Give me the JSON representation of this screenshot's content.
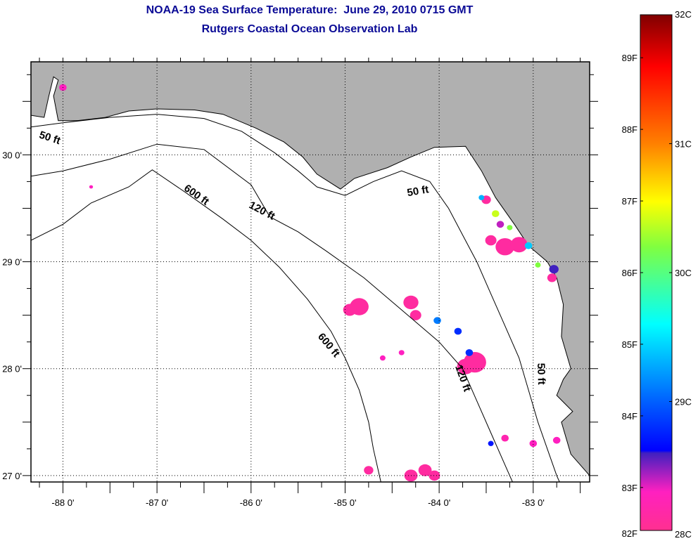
{
  "header": {
    "title": "NOAA-19 Sea Surface Temperature:  June 29, 2010 0715 GMT",
    "subtitle": "Rutgers Coastal Ocean Observation Lab"
  },
  "chart_data": {
    "type": "heatmap",
    "title": "NOAA-19 Sea Surface Temperature:  June 29, 2010 0715 GMT",
    "subtitle": "Rutgers Coastal Ocean Observation Lab",
    "xlabel": "",
    "ylabel": "",
    "xlim": [
      -88.34,
      -82.4
    ],
    "ylim": [
      26.94,
      30.87
    ],
    "grid": true,
    "x_ticks": [
      {
        "value": -88,
        "label": "-88 0'"
      },
      {
        "value": -87,
        "label": "-87 0'"
      },
      {
        "value": -86,
        "label": "-86 0'"
      },
      {
        "value": -85,
        "label": "-85 0'"
      },
      {
        "value": -84,
        "label": "-84 0'"
      },
      {
        "value": -83,
        "label": "-83 0'"
      }
    ],
    "y_ticks": [
      {
        "value": 30,
        "label": "30 0'"
      },
      {
        "value": 29,
        "label": "29 0'"
      },
      {
        "value": 28,
        "label": "28 0'"
      },
      {
        "value": 27,
        "label": "27 0'"
      }
    ],
    "colors": {
      "land": "#b0b0b0",
      "ocean": "#ffffff",
      "title": "#0a0a96",
      "frame": "#000000"
    },
    "colorbar": {
      "min_c": 28,
      "max_c": 32,
      "celsius_labels": [
        {
          "value": 32,
          "label": "32C"
        },
        {
          "value": 31,
          "label": "31C"
        },
        {
          "value": 30,
          "label": "30C"
        },
        {
          "value": 29,
          "label": "29C"
        },
        {
          "value": 28,
          "label": "28C"
        }
      ],
      "fahrenheit_labels": [
        {
          "value": 89,
          "label": "89F"
        },
        {
          "value": 88,
          "label": "88F"
        },
        {
          "value": 87,
          "label": "87F"
        },
        {
          "value": 86,
          "label": "86F"
        },
        {
          "value": 85,
          "label": "85F"
        },
        {
          "value": 84,
          "label": "84F"
        },
        {
          "value": 83,
          "label": "83F"
        },
        {
          "value": 82,
          "label": "82F"
        }
      ],
      "stops": [
        {
          "c": 32.0,
          "color": "#800000"
        },
        {
          "c": 31.6,
          "color": "#ff0000"
        },
        {
          "c": 31.0,
          "color": "#ff8000"
        },
        {
          "c": 30.55,
          "color": "#ffff00"
        },
        {
          "c": 30.2,
          "color": "#80ff40"
        },
        {
          "c": 29.6,
          "color": "#00ffff"
        },
        {
          "c": 29.0,
          "color": "#0060ff"
        },
        {
          "c": 28.62,
          "color": "#0000ff"
        },
        {
          "c": 28.6,
          "color": "#4020c0"
        },
        {
          "c": 28.3,
          "color": "#ff20c0"
        },
        {
          "c": 28.0,
          "color": "#ff3090"
        }
      ]
    },
    "isobaths": [
      {
        "label": "50 ft",
        "label_at": [
          -88.15,
          30.13
        ],
        "label_angle": 18,
        "points": [
          [
            -88.34,
            30.26
          ],
          [
            -88.0,
            30.3
          ],
          [
            -87.5,
            30.35
          ],
          [
            -87.0,
            30.38
          ],
          [
            -86.5,
            30.34
          ],
          [
            -86.1,
            30.22
          ],
          [
            -85.75,
            30.02
          ],
          [
            -85.5,
            29.85
          ],
          [
            -85.3,
            29.7
          ],
          [
            -85.0,
            29.62
          ],
          [
            -84.7,
            29.75
          ],
          [
            -84.4,
            29.85
          ],
          [
            -84.1,
            29.75
          ],
          [
            -83.9,
            29.5
          ],
          [
            -83.75,
            29.25
          ],
          [
            -83.6,
            29.0
          ],
          [
            -83.45,
            28.7
          ],
          [
            -83.3,
            28.4
          ],
          [
            -83.15,
            28.1
          ],
          [
            -83.05,
            27.8
          ],
          [
            -82.95,
            27.5
          ],
          [
            -82.85,
            27.25
          ],
          [
            -82.75,
            27.0
          ],
          [
            -82.72,
            26.94
          ]
        ]
      },
      {
        "label": "120 ft",
        "label_at": [
          -85.9,
          29.45
        ],
        "label_angle": 28,
        "points": [
          [
            -88.34,
            29.8
          ],
          [
            -88.0,
            29.85
          ],
          [
            -87.5,
            29.96
          ],
          [
            -87.0,
            30.1
          ],
          [
            -86.5,
            30.05
          ],
          [
            -86.0,
            29.72
          ],
          [
            -85.8,
            29.42
          ],
          [
            -85.5,
            29.28
          ],
          [
            -85.2,
            29.1
          ],
          [
            -84.8,
            28.85
          ],
          [
            -84.4,
            28.55
          ],
          [
            -84.0,
            28.25
          ],
          [
            -83.75,
            28.0
          ],
          [
            -83.6,
            27.7
          ],
          [
            -83.45,
            27.4
          ],
          [
            -83.3,
            27.1
          ],
          [
            -83.22,
            26.94
          ]
        ]
      },
      {
        "label": "600 ft",
        "label_at": [
          -86.6,
          29.6
        ],
        "label_angle": 35,
        "points": [
          [
            -88.34,
            29.2
          ],
          [
            -88.0,
            29.35
          ],
          [
            -87.7,
            29.55
          ],
          [
            -87.3,
            29.7
          ],
          [
            -87.05,
            29.86
          ],
          [
            -86.7,
            29.65
          ],
          [
            -86.3,
            29.4
          ],
          [
            -86.0,
            29.2
          ],
          [
            -85.7,
            28.95
          ],
          [
            -85.4,
            28.65
          ],
          [
            -85.15,
            28.35
          ],
          [
            -85.0,
            28.1
          ],
          [
            -84.85,
            27.8
          ],
          [
            -84.75,
            27.5
          ],
          [
            -84.7,
            27.25
          ],
          [
            -84.62,
            26.94
          ]
        ]
      },
      {
        "label": "600 ft",
        "label_at": [
          -85.2,
          28.2
        ],
        "label_angle": 50,
        "points": []
      },
      {
        "label": "50 ft",
        "label_at": [
          -84.22,
          29.63
        ],
        "label_angle": -10,
        "points": []
      },
      {
        "label": "120 ft",
        "label_at": [
          -83.78,
          27.9
        ],
        "label_angle": 70,
        "points": []
      },
      {
        "label": "50 ft",
        "label_at": [
          -82.95,
          27.95
        ],
        "label_angle": 88,
        "points": []
      }
    ],
    "land": [
      [
        [
          -88.34,
          30.87
        ],
        [
          -82.4,
          30.87
        ],
        [
          -82.4,
          27.0
        ],
        [
          -82.6,
          27.2
        ],
        [
          -82.7,
          27.5
        ],
        [
          -82.58,
          27.6
        ],
        [
          -82.75,
          27.75
        ],
        [
          -82.68,
          27.9
        ],
        [
          -82.6,
          28.0
        ],
        [
          -82.7,
          28.3
        ],
        [
          -82.68,
          28.6
        ],
        [
          -82.75,
          28.85
        ],
        [
          -82.85,
          29.0
        ],
        [
          -83.05,
          29.15
        ],
        [
          -83.2,
          29.35
        ],
        [
          -83.4,
          29.6
        ],
        [
          -83.55,
          29.85
        ],
        [
          -83.72,
          30.08
        ],
        [
          -84.05,
          30.07
        ],
        [
          -84.3,
          29.98
        ],
        [
          -84.55,
          29.88
        ],
        [
          -84.9,
          29.78
        ],
        [
          -85.05,
          29.68
        ],
        [
          -85.3,
          29.82
        ],
        [
          -85.45,
          29.98
        ],
        [
          -85.65,
          30.12
        ],
        [
          -85.95,
          30.25
        ],
        [
          -86.3,
          30.38
        ],
        [
          -86.6,
          30.42
        ],
        [
          -87.0,
          30.43
        ],
        [
          -87.3,
          30.41
        ],
        [
          -87.55,
          30.35
        ],
        [
          -87.85,
          30.32
        ],
        [
          -88.05,
          30.32
        ],
        [
          -88.1,
          30.55
        ],
        [
          -88.05,
          30.7
        ],
        [
          -88.1,
          30.73
        ],
        [
          -88.15,
          30.55
        ],
        [
          -88.2,
          30.35
        ],
        [
          -88.34,
          30.37
        ]
      ]
    ],
    "sst_patches": [
      {
        "lon": -84.85,
        "lat": 28.58,
        "c": 28.1,
        "r": 0.1
      },
      {
        "lon": -84.95,
        "lat": 28.55,
        "c": 28.1,
        "r": 0.07
      },
      {
        "lon": -84.3,
        "lat": 28.62,
        "c": 28.1,
        "r": 0.08
      },
      {
        "lon": -84.25,
        "lat": 28.5,
        "c": 28.1,
        "r": 0.06
      },
      {
        "lon": -83.62,
        "lat": 28.06,
        "c": 28.1,
        "r": 0.12
      },
      {
        "lon": -83.72,
        "lat": 28.02,
        "c": 28.1,
        "r": 0.09
      },
      {
        "lon": -83.68,
        "lat": 28.15,
        "c": 28.8,
        "r": 0.04
      },
      {
        "lon": -84.02,
        "lat": 28.45,
        "c": 29.1,
        "r": 0.04
      },
      {
        "lon": -83.8,
        "lat": 28.35,
        "c": 28.8,
        "r": 0.04
      },
      {
        "lon": -83.3,
        "lat": 29.14,
        "c": 28.1,
        "r": 0.1
      },
      {
        "lon": -83.15,
        "lat": 29.16,
        "c": 28.1,
        "r": 0.09
      },
      {
        "lon": -83.45,
        "lat": 29.2,
        "c": 28.1,
        "r": 0.06
      },
      {
        "lon": -83.05,
        "lat": 29.15,
        "c": 29.4,
        "r": 0.04
      },
      {
        "lon": -83.5,
        "lat": 29.58,
        "c": 28.1,
        "r": 0.05
      },
      {
        "lon": -83.4,
        "lat": 29.45,
        "c": 30.4,
        "r": 0.04
      },
      {
        "lon": -83.35,
        "lat": 29.35,
        "c": 28.4,
        "r": 0.04
      },
      {
        "lon": -83.25,
        "lat": 29.32,
        "c": 30.2,
        "r": 0.03
      },
      {
        "lon": -83.55,
        "lat": 29.6,
        "c": 29.3,
        "r": 0.03
      },
      {
        "lon": -82.78,
        "lat": 28.93,
        "c": 28.6,
        "r": 0.05
      },
      {
        "lon": -82.8,
        "lat": 28.85,
        "c": 28.1,
        "r": 0.05
      },
      {
        "lon": -82.95,
        "lat": 28.97,
        "c": 30.2,
        "r": 0.03
      },
      {
        "lon": -84.75,
        "lat": 27.05,
        "c": 28.1,
        "r": 0.05
      },
      {
        "lon": -84.3,
        "lat": 27.0,
        "c": 28.1,
        "r": 0.07
      },
      {
        "lon": -84.15,
        "lat": 27.05,
        "c": 28.1,
        "r": 0.07
      },
      {
        "lon": -84.05,
        "lat": 27.0,
        "c": 28.1,
        "r": 0.06
      },
      {
        "lon": -83.3,
        "lat": 27.35,
        "c": 28.2,
        "r": 0.04
      },
      {
        "lon": -83.45,
        "lat": 27.3,
        "c": 28.7,
        "r": 0.03
      },
      {
        "lon": -83.0,
        "lat": 27.3,
        "c": 28.3,
        "r": 0.04
      },
      {
        "lon": -82.75,
        "lat": 27.33,
        "c": 28.3,
        "r": 0.04
      },
      {
        "lon": -88.0,
        "lat": 30.63,
        "c": 28.3,
        "r": 0.04
      },
      {
        "lon": -87.7,
        "lat": 29.7,
        "c": 28.3,
        "r": 0.02
      },
      {
        "lon": -84.6,
        "lat": 28.1,
        "c": 28.3,
        "r": 0.03
      },
      {
        "lon": -84.4,
        "lat": 28.15,
        "c": 28.3,
        "r": 0.03
      }
    ]
  }
}
